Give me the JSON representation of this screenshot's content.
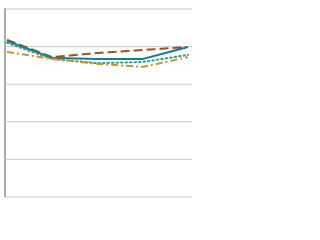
{
  "chart_data": {
    "type": "line",
    "categories": [
      null,
      null,
      null,
      null,
      null
    ],
    "ylim": [
      0,
      5
    ],
    "yticks": [
      0,
      1,
      2,
      3,
      4,
      5
    ],
    "grid": true,
    "series": [
      {
        "color": "#a0521e",
        "style": "dashed",
        "values": [
          4.18,
          3.72,
          3.83,
          3.91,
          3.99
        ]
      },
      {
        "color": "#1b7b86",
        "style": "solid",
        "values": [
          4.15,
          3.7,
          3.67,
          3.67,
          3.99
        ]
      },
      {
        "color": "#2aa198",
        "style": "dotted",
        "values": [
          4.1,
          3.67,
          3.56,
          3.59,
          3.78
        ]
      },
      {
        "color": "#d4912a",
        "style": "dashdot",
        "values": [
          3.86,
          3.67,
          3.54,
          3.46,
          3.72
        ]
      }
    ]
  }
}
